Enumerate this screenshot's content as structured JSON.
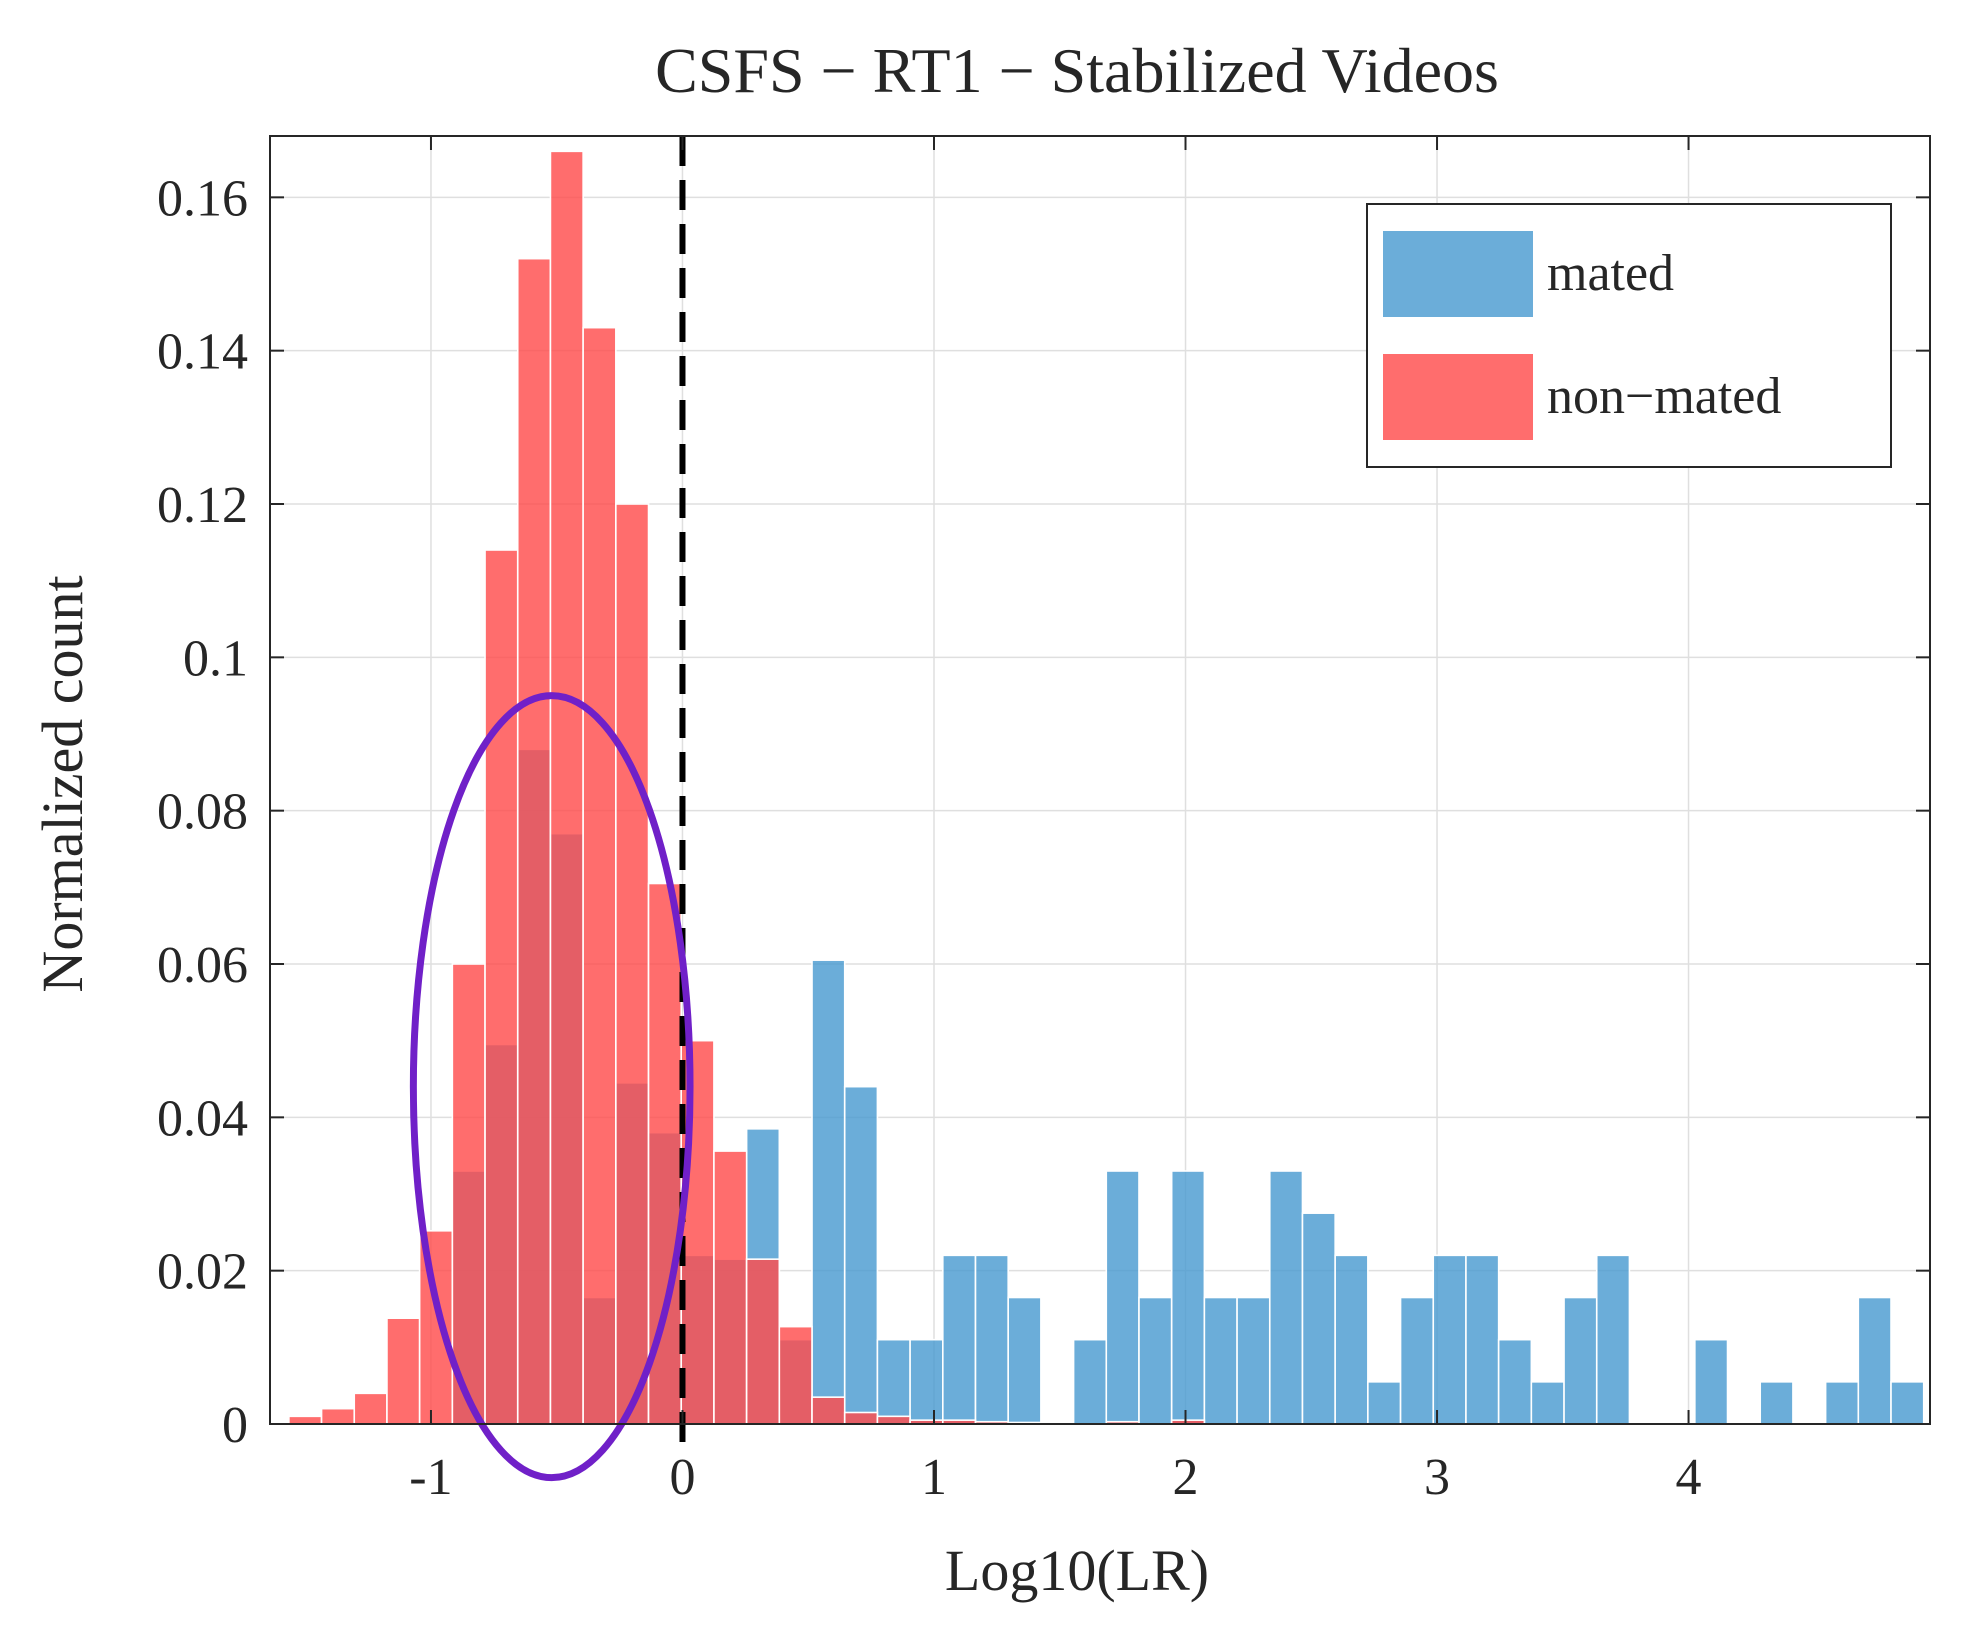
{
  "chart_data": {
    "type": "bar",
    "subtype": "overlaid-histogram",
    "title": "CSFS − RT1 − Stabilized Videos",
    "xlabel": "Log10(LR)",
    "ylabel": "Normalized count",
    "xlim": [
      -1.64,
      4.96
    ],
    "ylim": [
      0,
      0.168
    ],
    "grid": true,
    "legend_position": "top-right",
    "x_ticks": [
      -1,
      0,
      1,
      2,
      3,
      4
    ],
    "x_tick_labels": [
      "-1",
      "0",
      "1",
      "2",
      "3",
      "4"
    ],
    "y_ticks": [
      0,
      0.02,
      0.04,
      0.06,
      0.08,
      0.1,
      0.12,
      0.14,
      0.16
    ],
    "y_tick_labels": [
      "0",
      "0.02",
      "0.04",
      "0.06",
      "0.08",
      "0.1",
      "0.12",
      "0.14",
      "0.16"
    ],
    "bin_width": 0.13,
    "threshold": {
      "x": 0,
      "style": "dashed",
      "color": "#000000"
    },
    "highlight_ellipse": {
      "center_x": -0.52,
      "center_y": 0.044,
      "radius_x": 0.55,
      "radius_y": 0.051,
      "color": "#7020c8"
    },
    "series": [
      {
        "name": "mated",
        "color": "#4a9bd1",
        "bins": [
          {
            "x": -0.98,
            "y": 0.0
          },
          {
            "x": -0.85,
            "y": 0.033
          },
          {
            "x": -0.72,
            "y": 0.0495
          },
          {
            "x": -0.59,
            "y": 0.088
          },
          {
            "x": -0.46,
            "y": 0.077
          },
          {
            "x": -0.33,
            "y": 0.0165
          },
          {
            "x": -0.2,
            "y": 0.0445
          },
          {
            "x": -0.07,
            "y": 0.038
          },
          {
            "x": 0.06,
            "y": 0.022
          },
          {
            "x": 0.19,
            "y": 0.0215
          },
          {
            "x": 0.32,
            "y": 0.0385
          },
          {
            "x": 0.45,
            "y": 0.011
          },
          {
            "x": 0.58,
            "y": 0.0605
          },
          {
            "x": 0.71,
            "y": 0.044
          },
          {
            "x": 0.84,
            "y": 0.011
          },
          {
            "x": 0.97,
            "y": 0.011
          },
          {
            "x": 1.1,
            "y": 0.022
          },
          {
            "x": 1.23,
            "y": 0.022
          },
          {
            "x": 1.36,
            "y": 0.0165
          },
          {
            "x": 1.62,
            "y": 0.011
          },
          {
            "x": 1.75,
            "y": 0.033
          },
          {
            "x": 1.88,
            "y": 0.0165
          },
          {
            "x": 2.01,
            "y": 0.033
          },
          {
            "x": 2.14,
            "y": 0.0165
          },
          {
            "x": 2.27,
            "y": 0.0165
          },
          {
            "x": 2.4,
            "y": 0.033
          },
          {
            "x": 2.53,
            "y": 0.0275
          },
          {
            "x": 2.66,
            "y": 0.022
          },
          {
            "x": 2.79,
            "y": 0.0055
          },
          {
            "x": 2.92,
            "y": 0.0165
          },
          {
            "x": 3.05,
            "y": 0.022
          },
          {
            "x": 3.18,
            "y": 0.022
          },
          {
            "x": 3.31,
            "y": 0.011
          },
          {
            "x": 3.44,
            "y": 0.0055
          },
          {
            "x": 3.57,
            "y": 0.0165
          },
          {
            "x": 3.7,
            "y": 0.022
          },
          {
            "x": 4.09,
            "y": 0.011
          },
          {
            "x": 4.35,
            "y": 0.0055
          },
          {
            "x": 4.61,
            "y": 0.0055
          },
          {
            "x": 4.74,
            "y": 0.0165
          },
          {
            "x": 4.87,
            "y": 0.0055
          }
        ]
      },
      {
        "name": "non−mated",
        "color": "#ff4d4d",
        "bins": [
          {
            "x": -1.5,
            "y": 0.001
          },
          {
            "x": -1.37,
            "y": 0.002
          },
          {
            "x": -1.24,
            "y": 0.004
          },
          {
            "x": -1.11,
            "y": 0.0138
          },
          {
            "x": -0.98,
            "y": 0.0252
          },
          {
            "x": -0.85,
            "y": 0.06
          },
          {
            "x": -0.72,
            "y": 0.114
          },
          {
            "x": -0.59,
            "y": 0.152
          },
          {
            "x": -0.46,
            "y": 0.166
          },
          {
            "x": -0.33,
            "y": 0.143
          },
          {
            "x": -0.2,
            "y": 0.12
          },
          {
            "x": -0.07,
            "y": 0.0705
          },
          {
            "x": 0.06,
            "y": 0.05
          },
          {
            "x": 0.19,
            "y": 0.0356
          },
          {
            "x": 0.32,
            "y": 0.0215
          },
          {
            "x": 0.45,
            "y": 0.0127
          },
          {
            "x": 0.58,
            "y": 0.0035
          },
          {
            "x": 0.71,
            "y": 0.0015
          },
          {
            "x": 0.84,
            "y": 0.001
          },
          {
            "x": 0.97,
            "y": 0.0005
          },
          {
            "x": 1.1,
            "y": 0.0005
          },
          {
            "x": 1.23,
            "y": 0.0003
          },
          {
            "x": 1.36,
            "y": 0.0002
          },
          {
            "x": 1.75,
            "y": 0.0003
          },
          {
            "x": 2.01,
            "y": 0.0005
          }
        ]
      }
    ]
  }
}
